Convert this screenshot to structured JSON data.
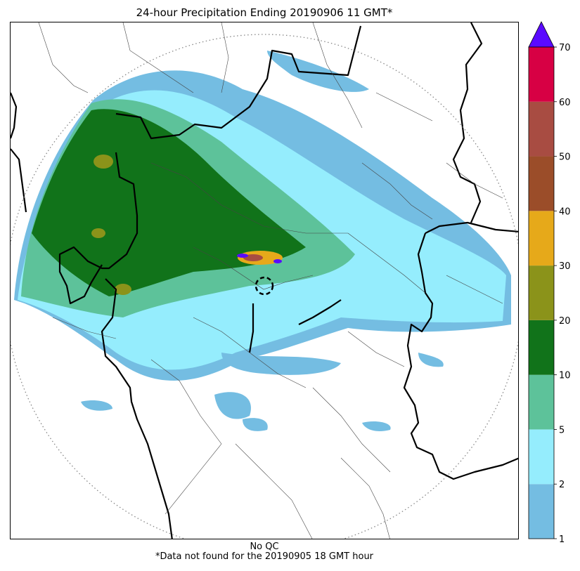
{
  "title": "24-hour Precipitation Ending 20190906 11 GMT*",
  "footer": {
    "qc_note": "No QC",
    "missing_note": "*Data not found for the 20190905 18 GMT hour"
  },
  "colorbar": {
    "levels": [
      "1",
      "2",
      "5",
      "10",
      "20",
      "30",
      "40",
      "50",
      "60",
      "70"
    ],
    "colors": [
      "#74bde2",
      "#95edfd",
      "#5dc29a",
      "#11731a",
      "#8b931a",
      "#e6a91a",
      "#9b4d29",
      "#a84c42",
      "#d70044"
    ],
    "over_color": "#5a0aff"
  },
  "map": {
    "radar_range_ring": "dotted",
    "radar_center_ring": "dashed"
  }
}
